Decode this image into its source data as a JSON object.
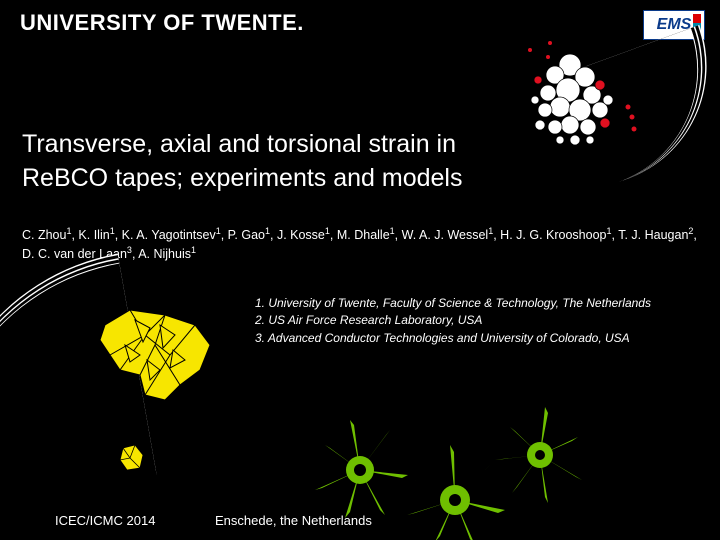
{
  "header": {
    "university": "UNIVERSITY OF TWENTE."
  },
  "logo": {
    "text": "EMS"
  },
  "title": {
    "line1": "Transverse, axial and torsional strain in",
    "line2": "ReBCO tapes; experiments and models"
  },
  "authors": {
    "text_html": "C. Zhou<sup>1</sup>, K. Ilin<sup>1</sup>, K. A. Yagotintsev<sup>1</sup>, P. Gao<sup>1</sup>, J. Kosse<sup>1</sup>, M. Dhalle<sup>1</sup>, W. A. J. Wessel<sup>1</sup>, H. J. G. Krooshoop<sup>1</sup>, T. J. Haugan<sup>2</sup>, D. C. van der Laan<sup>3</sup>, A. Nijhuis<sup>1</sup>"
  },
  "affiliations": {
    "a1": "1. University of Twente, Faculty of Science & Technology, The Netherlands",
    "a2": "2. US Air Force Research Laboratory, USA",
    "a3": "3. Advanced Conductor Technologies and University of Colorado, USA"
  },
  "footer": {
    "conference": "ICEC/ICMC 2014",
    "location": "Enschede, the Netherlands"
  },
  "colors": {
    "background": "#000000",
    "text": "#ffffff",
    "accent_yellow": "#f7e600",
    "accent_green": "#6fbf00",
    "accent_red": "#e01020",
    "logo_blue": "#0a3a8a"
  },
  "decorations": {
    "cluster_circles": {
      "fill_main": "#ffffff",
      "fill_accent": "#e01020",
      "stroke": "#000000"
    },
    "yellow_shape": {
      "fill": "#f7e600",
      "stroke": "#000000"
    },
    "green_stars": {
      "fill": "#6fbf00"
    },
    "wires": {
      "stroke": "#ffffff",
      "tip": "#e01020"
    }
  }
}
